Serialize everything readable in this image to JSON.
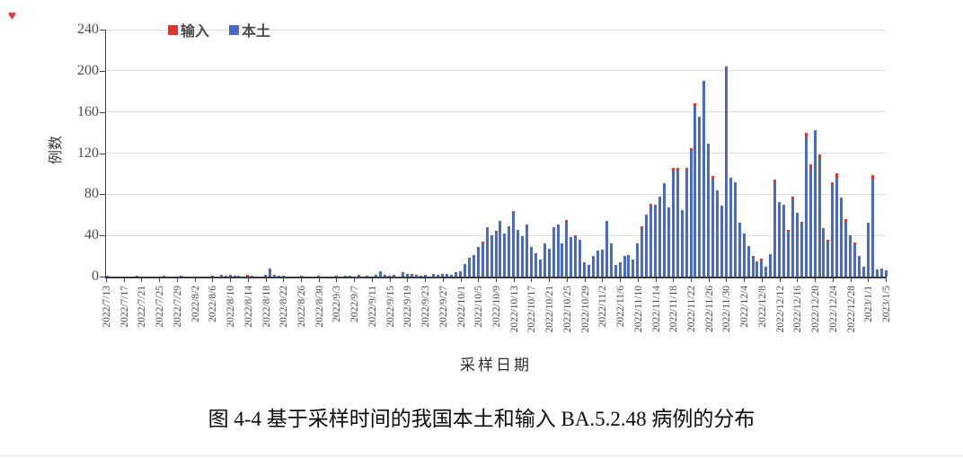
{
  "page": {
    "corner_mark": "♥"
  },
  "figure": {
    "caption": "图 4-4 基于采样时间的我国本土和输入 BA.5.2.48 病例的分布"
  },
  "chart_data": {
    "type": "bar",
    "stacked": true,
    "xlabel": "采样日期",
    "ylabel": "例数",
    "ylim": [
      0,
      240
    ],
    "yticks": [
      0,
      40,
      80,
      120,
      160,
      200,
      240
    ],
    "grid": true,
    "legend_position": "top-left-inside",
    "legend": [
      {
        "name": "输入",
        "color": "#e3342b"
      },
      {
        "name": "本土",
        "color": "#4a6bc5"
      }
    ],
    "x_start": "2022/7/13",
    "x_end": "2023/1/5",
    "xtick_labels": [
      "2022/7/13",
      "2022/7/17",
      "2022/7/21",
      "2022/7/25",
      "2022/7/29",
      "2022/8/2",
      "2022/8/6",
      "2022/8/10",
      "2022/8/14",
      "2022/8/18",
      "2022/8/22",
      "2022/8/26",
      "2022/8/30",
      "2022/9/3",
      "2022/9/7",
      "2022/9/11",
      "2022/9/15",
      "2022/9/19",
      "2022/9/23",
      "2022/9/27",
      "2022/10/1",
      "2022/10/5",
      "2022/10/9",
      "2022/10/13",
      "2022/10/17",
      "2022/10/21",
      "2022/10/25",
      "2022/10/29",
      "2022/11/2",
      "2022/11/6",
      "2022/11/10",
      "2022/11/14",
      "2022/11/18",
      "2022/11/22",
      "2022/11/26",
      "2022/11/30",
      "2022/12/4",
      "2022/12/8",
      "2022/12/12",
      "2022/12/16",
      "2022/12/20",
      "2022/12/24",
      "2022/12/28",
      "2023/1/1",
      "2023/1/5"
    ],
    "series_order_note": "bars = [date, local(本土), imported(输入)] stacked blue bottom / red top",
    "bars": [
      [
        "2022/7/13",
        1,
        0
      ],
      [
        "2022/7/20",
        1,
        0
      ],
      [
        "2022/7/26",
        1,
        0
      ],
      [
        "2022/7/30",
        1,
        0
      ],
      [
        "2022/8/6",
        1,
        0
      ],
      [
        "2022/8/8",
        2,
        0
      ],
      [
        "2022/8/9",
        1,
        0
      ],
      [
        "2022/8/10",
        2,
        0
      ],
      [
        "2022/8/11",
        1,
        0
      ],
      [
        "2022/8/12",
        1,
        0
      ],
      [
        "2022/8/14",
        0,
        2
      ],
      [
        "2022/8/15",
        1,
        0
      ],
      [
        "2022/8/18",
        2,
        0
      ],
      [
        "2022/8/19",
        8,
        0
      ],
      [
        "2022/8/20",
        2,
        0
      ],
      [
        "2022/8/21",
        1,
        0
      ],
      [
        "2022/8/22",
        1,
        0
      ],
      [
        "2022/8/26",
        1,
        0
      ],
      [
        "2022/8/30",
        1,
        0
      ],
      [
        "2022/9/3",
        1,
        0
      ],
      [
        "2022/9/5",
        1,
        0
      ],
      [
        "2022/9/6",
        1,
        0
      ],
      [
        "2022/9/8",
        2,
        0
      ],
      [
        "2022/9/10",
        1,
        0
      ],
      [
        "2022/9/12",
        2,
        0
      ],
      [
        "2022/9/13",
        5,
        0
      ],
      [
        "2022/9/14",
        2,
        0
      ],
      [
        "2022/9/15",
        1,
        0
      ],
      [
        "2022/9/16",
        2,
        0
      ],
      [
        "2022/9/18",
        4,
        0
      ],
      [
        "2022/9/19",
        3,
        0
      ],
      [
        "2022/9/20",
        2,
        1
      ],
      [
        "2022/9/21",
        2,
        0
      ],
      [
        "2022/9/22",
        1,
        0
      ],
      [
        "2022/9/23",
        2,
        0
      ],
      [
        "2022/9/25",
        3,
        0
      ],
      [
        "2022/9/26",
        2,
        0
      ],
      [
        "2022/9/27",
        3,
        0
      ],
      [
        "2022/9/28",
        3,
        0
      ],
      [
        "2022/9/29",
        2,
        0
      ],
      [
        "2022/9/30",
        4,
        0
      ],
      [
        "2022/10/1",
        5,
        0
      ],
      [
        "2022/10/2",
        12,
        0
      ],
      [
        "2022/10/3",
        18,
        0
      ],
      [
        "2022/10/4",
        21,
        0
      ],
      [
        "2022/10/5",
        29,
        0
      ],
      [
        "2022/10/6",
        32,
        2
      ],
      [
        "2022/10/7",
        48,
        0
      ],
      [
        "2022/10/8",
        40,
        0
      ],
      [
        "2022/10/9",
        43,
        2
      ],
      [
        "2022/10/10",
        54,
        0
      ],
      [
        "2022/10/11",
        42,
        0
      ],
      [
        "2022/10/12",
        49,
        0
      ],
      [
        "2022/10/13",
        64,
        0
      ],
      [
        "2022/10/14",
        45,
        0
      ],
      [
        "2022/10/15",
        39,
        0
      ],
      [
        "2022/10/16",
        51,
        0
      ],
      [
        "2022/10/17",
        29,
        0
      ],
      [
        "2022/10/18",
        23,
        0
      ],
      [
        "2022/10/19",
        17,
        0
      ],
      [
        "2022/10/20",
        32,
        0
      ],
      [
        "2022/10/21",
        27,
        0
      ],
      [
        "2022/10/22",
        48,
        0
      ],
      [
        "2022/10/23",
        51,
        0
      ],
      [
        "2022/10/24",
        32,
        0
      ],
      [
        "2022/10/25",
        52,
        3
      ],
      [
        "2022/10/26",
        38,
        0
      ],
      [
        "2022/10/27",
        38,
        2
      ],
      [
        "2022/10/28",
        36,
        0
      ],
      [
        "2022/10/29",
        14,
        0
      ],
      [
        "2022/10/30",
        11,
        0
      ],
      [
        "2022/10/31",
        20,
        0
      ],
      [
        "2022/11/1",
        25,
        0
      ],
      [
        "2022/11/2",
        26,
        0
      ],
      [
        "2022/11/3",
        54,
        0
      ],
      [
        "2022/11/4",
        32,
        0
      ],
      [
        "2022/11/5",
        11,
        0
      ],
      [
        "2022/11/6",
        14,
        0
      ],
      [
        "2022/11/7",
        20,
        0
      ],
      [
        "2022/11/8",
        21,
        0
      ],
      [
        "2022/11/9",
        17,
        0
      ],
      [
        "2022/11/10",
        32,
        0
      ],
      [
        "2022/11/11",
        47,
        2
      ],
      [
        "2022/11/12",
        60,
        0
      ],
      [
        "2022/11/13",
        68,
        3
      ],
      [
        "2022/11/14",
        70,
        0
      ],
      [
        "2022/11/15",
        78,
        0
      ],
      [
        "2022/11/16",
        91,
        0
      ],
      [
        "2022/11/17",
        67,
        0
      ],
      [
        "2022/11/18",
        103,
        3
      ],
      [
        "2022/11/19",
        103,
        3
      ],
      [
        "2022/11/20",
        65,
        0
      ],
      [
        "2022/11/21",
        104,
        2
      ],
      [
        "2022/11/22",
        122,
        3
      ],
      [
        "2022/11/23",
        166,
        3
      ],
      [
        "2022/11/24",
        155,
        0
      ],
      [
        "2022/11/25",
        190,
        0
      ],
      [
        "2022/11/26",
        129,
        0
      ],
      [
        "2022/11/27",
        95,
        3
      ],
      [
        "2022/11/28",
        84,
        0
      ],
      [
        "2022/11/29",
        69,
        0
      ],
      [
        "2022/11/30",
        204,
        0
      ],
      [
        "2022/12/1",
        96,
        0
      ],
      [
        "2022/12/2",
        92,
        0
      ],
      [
        "2022/12/3",
        52,
        0
      ],
      [
        "2022/12/4",
        42,
        0
      ],
      [
        "2022/12/5",
        30,
        0
      ],
      [
        "2022/12/6",
        18,
        2
      ],
      [
        "2022/12/7",
        15,
        0
      ],
      [
        "2022/12/8",
        16,
        2
      ],
      [
        "2022/12/9",
        10,
        0
      ],
      [
        "2022/12/10",
        22,
        0
      ],
      [
        "2022/12/11",
        92,
        3
      ],
      [
        "2022/12/12",
        72,
        0
      ],
      [
        "2022/12/13",
        70,
        0
      ],
      [
        "2022/12/14",
        44,
        2
      ],
      [
        "2022/12/15",
        75,
        3
      ],
      [
        "2022/12/16",
        62,
        0
      ],
      [
        "2022/12/17",
        51,
        3
      ],
      [
        "2022/12/18",
        135,
        4
      ],
      [
        "2022/12/19",
        104,
        5
      ],
      [
        "2022/12/20",
        142,
        0
      ],
      [
        "2022/12/21",
        114,
        4
      ],
      [
        "2022/12/22",
        47,
        0
      ],
      [
        "2022/12/23",
        34,
        2
      ],
      [
        "2022/12/24",
        89,
        3
      ],
      [
        "2022/12/25",
        96,
        4
      ],
      [
        "2022/12/26",
        77,
        0
      ],
      [
        "2022/12/27",
        53,
        3
      ],
      [
        "2022/12/28",
        40,
        0
      ],
      [
        "2022/12/29",
        31,
        2
      ],
      [
        "2022/12/30",
        20,
        0
      ],
      [
        "2022/12/31",
        10,
        0
      ],
      [
        "2023/1/1",
        52,
        0
      ],
      [
        "2023/1/2",
        94,
        4
      ],
      [
        "2023/1/3",
        7,
        0
      ],
      [
        "2023/1/4",
        8,
        0
      ],
      [
        "2023/1/5",
        6,
        0
      ]
    ]
  }
}
